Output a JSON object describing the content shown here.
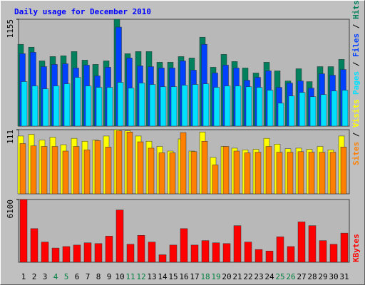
{
  "chart_data": [
    {
      "type": "bar",
      "title": "Daily usage for December 2010",
      "ylim": [
        0,
        1155
      ],
      "yticks": [
        1155
      ],
      "legend_separator": " / ",
      "series": [
        {
          "name": "Hits",
          "color": "#00805c",
          "values": [
            884,
            853,
            705,
            752,
            760,
            806,
            713,
            667,
            705,
            1155,
            783,
            806,
            806,
            690,
            690,
            752,
            736,
            961,
            636,
            775,
            698,
            628,
            574,
            690,
            597,
            488,
            620,
            481,
            643,
            643,
            721
          ]
        },
        {
          "name": "Files",
          "color": "#0040ff",
          "values": [
            783,
            798,
            643,
            667,
            674,
            628,
            659,
            543,
            636,
            1070,
            736,
            651,
            643,
            628,
            628,
            705,
            605,
            884,
            574,
            659,
            628,
            496,
            527,
            597,
            419,
            465,
            488,
            411,
            566,
            550,
            612
          ]
        },
        {
          "name": "Pages",
          "color": "#00e0ff",
          "values": [
            481,
            434,
            403,
            434,
            457,
            527,
            434,
            419,
            419,
            473,
            411,
            465,
            450,
            426,
            426,
            442,
            450,
            457,
            419,
            434,
            434,
            426,
            419,
            388,
            248,
            326,
            364,
            318,
            341,
            380,
            388
          ]
        }
      ]
    },
    {
      "type": "bar",
      "ylim": [
        0,
        111
      ],
      "yticks": [
        111
      ],
      "legend_separator": " / ",
      "series": [
        {
          "name": "Visits",
          "color": "#ffff00",
          "values": [
            100,
            103,
            93,
            98,
            85,
            96,
            91,
            93,
            100,
            111,
            109,
            100,
            91,
            82,
            74,
            95,
            74,
            107,
            63,
            82,
            79,
            76,
            77,
            96,
            86,
            78,
            79,
            77,
            82,
            76,
            100
          ]
        },
        {
          "name": "Sites",
          "color": "#ff8000",
          "values": [
            87,
            83,
            82,
            82,
            74,
            82,
            76,
            92,
            81,
            109,
            107,
            90,
            79,
            71,
            71,
            106,
            73,
            91,
            50,
            82,
            74,
            71,
            72,
            82,
            72,
            72,
            73,
            72,
            72,
            72,
            81
          ]
        }
      ]
    },
    {
      "type": "bar",
      "ylim": [
        0,
        6100
      ],
      "yticks": [
        6100
      ],
      "categories": [
        "1",
        "2",
        "3",
        "4",
        "5",
        "6",
        "7",
        "8",
        "9",
        "10",
        "11",
        "12",
        "13",
        "14",
        "15",
        "16",
        "17",
        "18",
        "19",
        "20",
        "21",
        "22",
        "23",
        "24",
        "25",
        "26",
        "27",
        "28",
        "29",
        "30",
        "31"
      ],
      "category_label_colors": [
        "#000000",
        "#000000",
        "#000000",
        "#008040",
        "#008040",
        "#000000",
        "#000000",
        "#000000",
        "#000000",
        "#000000",
        "#008040",
        "#008040",
        "#000000",
        "#000000",
        "#000000",
        "#000000",
        "#000000",
        "#008040",
        "#008040",
        "#000000",
        "#000000",
        "#000000",
        "#000000",
        "#000000",
        "#008040",
        "#008040",
        "#000000",
        "#000000",
        "#000000",
        "#000000",
        "#000000"
      ],
      "series": [
        {
          "name": "KBytes",
          "color": "#ff0000",
          "values": [
            6100,
            3268,
            1960,
            1380,
            1525,
            1670,
            1888,
            1815,
            2541,
            5083,
            1743,
            2614,
            1960,
            726,
            1670,
            3268,
            1670,
            2106,
            1888,
            1815,
            3559,
            1960,
            1235,
            1089,
            2469,
            1525,
            3921,
            3559,
            2106,
            1743,
            2832
          ]
        }
      ]
    }
  ]
}
